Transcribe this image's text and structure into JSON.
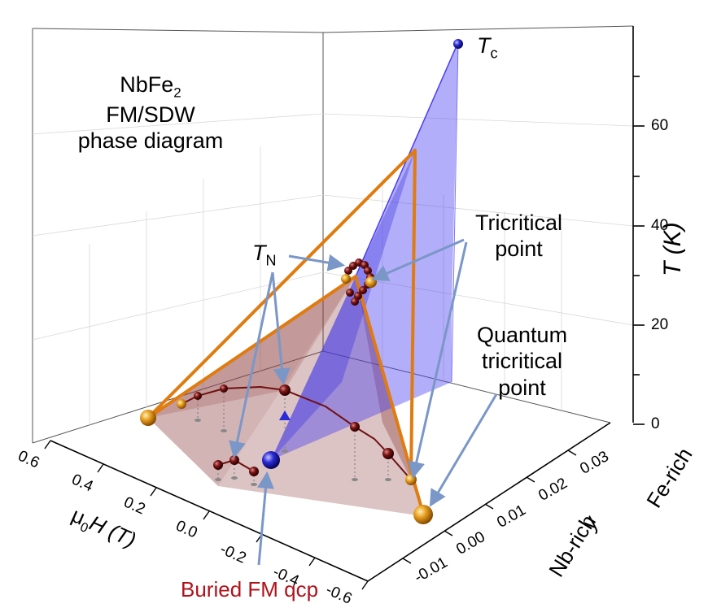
{
  "title": {
    "line1_base": "NbFe",
    "line1_sub": "2",
    "line2": "FM/SDW",
    "line3": "phase diagram"
  },
  "annotations": {
    "tc": "T",
    "tc_sub": "c",
    "tn": "T",
    "tn_sub": "N",
    "tricritical_line1": "Tricritical",
    "tricritical_line2": "point",
    "quantum_line1": "Quantum",
    "quantum_line2": "tricritical",
    "quantum_line3": "point",
    "buried": "Buried FM qcp"
  },
  "axes": {
    "z_label": "T (K)",
    "z_ticks": [
      "0",
      "20",
      "40",
      "60"
    ],
    "y_label": "y",
    "y_ticks": [
      "-0.01",
      "0.00",
      "0.01",
      "0.02",
      "0.03"
    ],
    "y_end_low": "Nb-rich",
    "y_end_high": "Fe-rich",
    "h_label_prefix": "μ",
    "h_label_sub": "0",
    "h_label_rest": "H (T)",
    "h_ticks": [
      "0.6",
      "0.4",
      "0.2",
      "0.0",
      "-0.2",
      "-0.4",
      "-0.6"
    ]
  },
  "colors": {
    "fm_plane": "#4a3ef0",
    "sdw_surface": "#8b3a3a",
    "wing_line": "#e07b10",
    "sdw_points": "#6e1010",
    "tc_point": "#2a2ad8",
    "tricritical_point": "#e8a020",
    "arrow": "#7a97c8",
    "buried_text": "#b0121a"
  }
}
